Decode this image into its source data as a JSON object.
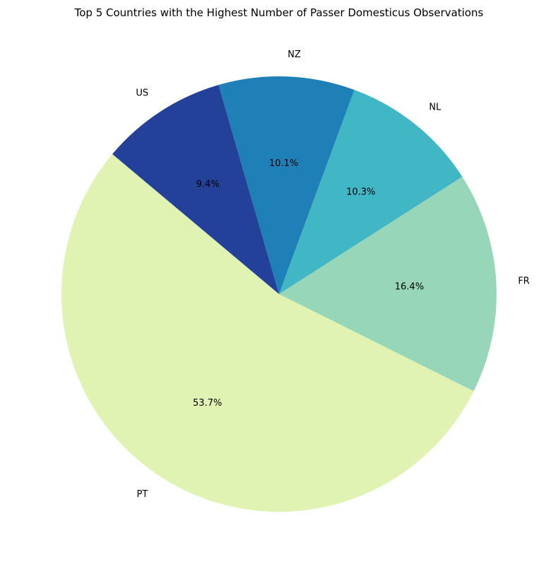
{
  "chart_data": {
    "type": "pie",
    "title": "Top 5 Countries with the Highest Number of Passer Domesticus Observations",
    "start_angle_deg": 140,
    "direction": "counterclockwise",
    "slices": [
      {
        "label": "PT",
        "value": 53.7,
        "pct_label": "53.7%",
        "color": "#e0f3b2"
      },
      {
        "label": "FR",
        "value": 16.4,
        "pct_label": "16.4%",
        "color": "#97d6b8"
      },
      {
        "label": "NL",
        "value": 10.3,
        "pct_label": "10.3%",
        "color": "#41b6c4"
      },
      {
        "label": "NZ",
        "value": 10.1,
        "pct_label": "10.1%",
        "color": "#1f80b8"
      },
      {
        "label": "US",
        "value": 9.4,
        "pct_label": "9.4%",
        "color": "#24419a"
      }
    ]
  }
}
